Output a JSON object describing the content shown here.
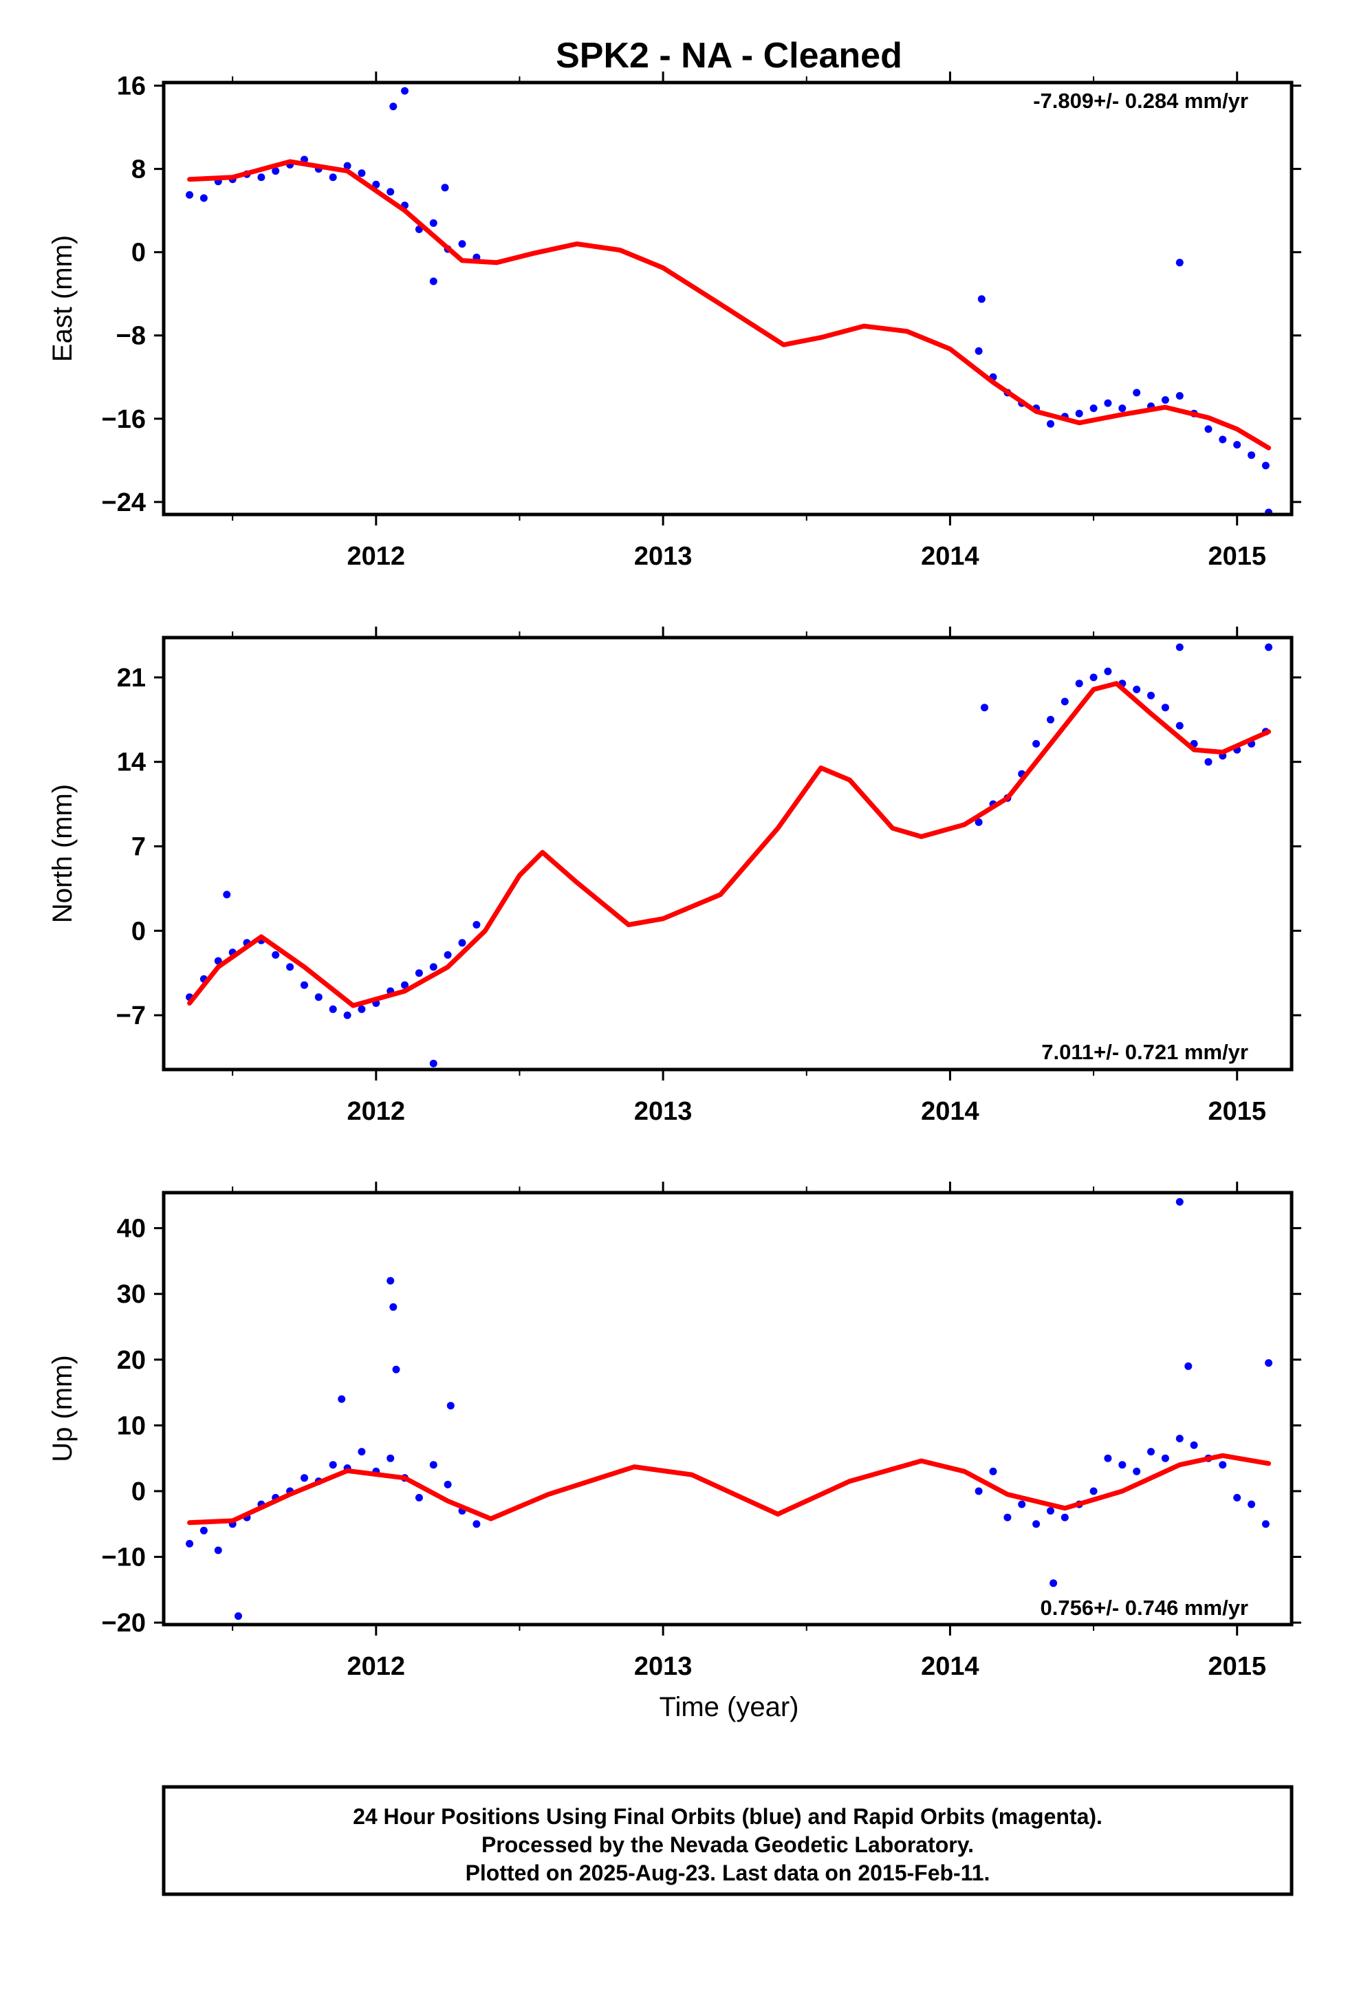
{
  "title": "SPK2  - NA - Cleaned",
  "xlabel": "Time (year)",
  "footer": {
    "line1": "24 Hour Positions Using Final Orbits (blue) and Rapid Orbits (magenta).",
    "line2": "Processed by the Nevada Geodetic Laboratory.",
    "line3": "Plotted on 2025-Aug-23. Last data on 2015-Feb-11."
  },
  "colors": {
    "points": "#0000ff",
    "fit": "#ff0000",
    "frame": "#000000"
  },
  "chart_data": [
    {
      "type": "scatter",
      "ylabel": "East (mm)",
      "rate": "-7.809+/- 0.284 mm/yr",
      "xlim": [
        2011.26,
        2015.19
      ],
      "ylim": [
        -25.2,
        16.3
      ],
      "yticks": [
        16,
        8,
        0,
        -8,
        -16,
        -24
      ],
      "ytick_labels": [
        "16",
        "8",
        "0",
        "−8",
        "−16",
        "−24"
      ],
      "xticks": [
        2012,
        2013,
        2014,
        2015
      ],
      "xtick_labels": [
        "2012",
        "2013",
        "2014",
        "2015"
      ],
      "series": [
        {
          "name": "positions",
          "x": [
            2011.35,
            2011.4,
            2011.45,
            2011.5,
            2011.55,
            2011.6,
            2011.65,
            2011.7,
            2011.75,
            2011.8,
            2011.85,
            2011.9,
            2011.95,
            2012.0,
            2012.05,
            2012.1,
            2012.15,
            2012.2,
            2012.25,
            2012.3,
            2012.35,
            2012.06,
            2012.1,
            2012.2,
            2012.24,
            2014.1,
            2014.15,
            2014.2,
            2014.25,
            2014.3,
            2014.35,
            2014.4,
            2014.45,
            2014.5,
            2014.55,
            2014.6,
            2014.65,
            2014.7,
            2014.75,
            2014.8,
            2014.85,
            2014.9,
            2014.95,
            2015.0,
            2015.05,
            2015.1,
            2014.11,
            2014.8,
            2015.11
          ],
          "y": [
            5.5,
            5.2,
            6.8,
            7.0,
            7.5,
            7.2,
            7.8,
            8.4,
            8.9,
            8.0,
            7.2,
            8.3,
            7.6,
            6.5,
            5.8,
            4.5,
            2.2,
            2.8,
            0.3,
            0.8,
            -0.5,
            14.0,
            15.5,
            -2.8,
            6.2,
            -9.5,
            -12.0,
            -13.5,
            -14.5,
            -15.0,
            -16.5,
            -15.8,
            -15.5,
            -15.0,
            -14.5,
            -15.0,
            -13.5,
            -14.8,
            -14.2,
            -13.8,
            -15.5,
            -17.0,
            -18.0,
            -18.5,
            -19.5,
            -20.5,
            -4.5,
            -1.0,
            -25.0
          ]
        },
        {
          "name": "fit",
          "x": [
            2011.35,
            2011.5,
            2011.7,
            2011.9,
            2012.1,
            2012.3,
            2012.42,
            2012.55,
            2012.7,
            2012.85,
            2013.0,
            2013.2,
            2013.42,
            2013.55,
            2013.7,
            2013.85,
            2014.0,
            2014.15,
            2014.3,
            2014.45,
            2014.6,
            2014.75,
            2014.9,
            2015.0,
            2015.11
          ],
          "y": [
            7.0,
            7.2,
            8.7,
            7.8,
            4.0,
            -0.8,
            -1.0,
            -0.1,
            0.8,
            0.2,
            -1.5,
            -5.0,
            -8.9,
            -8.2,
            -7.1,
            -7.6,
            -9.3,
            -12.5,
            -15.3,
            -16.4,
            -15.6,
            -14.9,
            -15.9,
            -17.0,
            -18.8
          ]
        }
      ]
    },
    {
      "type": "scatter",
      "ylabel": "North (mm)",
      "rate": "7.011+/- 0.721 mm/yr",
      "xlim": [
        2011.26,
        2015.19
      ],
      "ylim": [
        -11.5,
        24.3
      ],
      "yticks": [
        21,
        14,
        7,
        0,
        -7
      ],
      "ytick_labels": [
        "21",
        "14",
        "7",
        "0",
        "−7"
      ],
      "xticks": [
        2012,
        2013,
        2014,
        2015
      ],
      "xtick_labels": [
        "2012",
        "2013",
        "2014",
        "2015"
      ],
      "series": [
        {
          "name": "positions",
          "x": [
            2011.35,
            2011.4,
            2011.45,
            2011.5,
            2011.55,
            2011.6,
            2011.65,
            2011.7,
            2011.75,
            2011.8,
            2011.85,
            2011.9,
            2011.95,
            2012.0,
            2012.05,
            2012.1,
            2012.15,
            2012.2,
            2012.25,
            2012.3,
            2012.35,
            2011.48,
            2012.2,
            2014.1,
            2014.15,
            2014.2,
            2014.25,
            2014.3,
            2014.35,
            2014.4,
            2014.45,
            2014.5,
            2014.55,
            2014.6,
            2014.65,
            2014.7,
            2014.75,
            2014.8,
            2014.85,
            2014.9,
            2014.95,
            2015.0,
            2015.05,
            2015.1,
            2014.12,
            2014.8,
            2015.11
          ],
          "y": [
            -5.5,
            -4.0,
            -2.5,
            -1.8,
            -1.0,
            -0.8,
            -2.0,
            -3.0,
            -4.5,
            -5.5,
            -6.5,
            -7.0,
            -6.5,
            -6.0,
            -5.0,
            -4.5,
            -3.5,
            -3.0,
            -2.0,
            -1.0,
            0.5,
            3.0,
            -11.0,
            9.0,
            10.5,
            11.0,
            13.0,
            15.5,
            17.5,
            19.0,
            20.5,
            21.0,
            21.5,
            20.5,
            20.0,
            19.5,
            18.5,
            17.0,
            15.5,
            14.0,
            14.5,
            15.0,
            15.5,
            16.5,
            18.5,
            23.5,
            23.5
          ]
        },
        {
          "name": "fit",
          "x": [
            2011.35,
            2011.45,
            2011.6,
            2011.75,
            2011.92,
            2012.1,
            2012.25,
            2012.38,
            2012.5,
            2012.58,
            2012.7,
            2012.88,
            2013.0,
            2013.2,
            2013.4,
            2013.55,
            2013.65,
            2013.8,
            2013.9,
            2014.05,
            2014.2,
            2014.35,
            2014.5,
            2014.58,
            2014.7,
            2014.85,
            2014.95,
            2015.11
          ],
          "y": [
            -6.0,
            -3.0,
            -0.5,
            -3.0,
            -6.2,
            -5.0,
            -3.0,
            0.0,
            4.6,
            6.5,
            4.0,
            0.5,
            1.0,
            3.0,
            8.5,
            13.5,
            12.5,
            8.5,
            7.8,
            8.8,
            11.0,
            15.5,
            20.0,
            20.5,
            18.0,
            15.0,
            14.8,
            16.5
          ]
        }
      ]
    },
    {
      "type": "scatter",
      "ylabel": "Up (mm)",
      "rate": "0.756+/- 0.746 mm/yr",
      "xlim": [
        2011.26,
        2015.19
      ],
      "ylim": [
        -20.3,
        45.4
      ],
      "yticks": [
        40,
        30,
        20,
        10,
        0,
        -10,
        -20
      ],
      "ytick_labels": [
        "40",
        "30",
        "20",
        "10",
        "0",
        "−10",
        "−20"
      ],
      "xticks": [
        2012,
        2013,
        2014,
        2015
      ],
      "xtick_labels": [
        "2012",
        "2013",
        "2014",
        "2015"
      ],
      "series": [
        {
          "name": "positions",
          "x": [
            2011.35,
            2011.4,
            2011.45,
            2011.5,
            2011.55,
            2011.6,
            2011.65,
            2011.7,
            2011.75,
            2011.8,
            2011.85,
            2011.9,
            2011.95,
            2012.0,
            2012.05,
            2012.1,
            2012.15,
            2012.2,
            2012.25,
            2012.3,
            2012.35,
            2012.05,
            2012.06,
            2012.07,
            2011.52,
            2011.88,
            2012.26,
            2014.1,
            2014.15,
            2014.2,
            2014.25,
            2014.3,
            2014.35,
            2014.4,
            2014.45,
            2014.5,
            2014.55,
            2014.6,
            2014.65,
            2014.7,
            2014.75,
            2014.8,
            2014.85,
            2014.9,
            2014.95,
            2015.0,
            2015.05,
            2015.1,
            2014.36,
            2014.8,
            2015.11,
            2014.83
          ],
          "y": [
            -8.0,
            -6.0,
            -9.0,
            -5.0,
            -4.0,
            -2.0,
            -1.0,
            0.0,
            2.0,
            1.5,
            4.0,
            3.5,
            6.0,
            3.0,
            5.0,
            2.0,
            -1.0,
            4.0,
            1.0,
            -3.0,
            -5.0,
            32.0,
            28.0,
            18.5,
            -19.0,
            14.0,
            13.0,
            0.0,
            3.0,
            -4.0,
            -2.0,
            -5.0,
            -3.0,
            -4.0,
            -2.0,
            0.0,
            5.0,
            4.0,
            3.0,
            6.0,
            5.0,
            8.0,
            7.0,
            5.0,
            4.0,
            -1.0,
            -2.0,
            -5.0,
            -14.0,
            44.0,
            19.5,
            19.0
          ]
        },
        {
          "name": "fit",
          "x": [
            2011.35,
            2011.5,
            2011.7,
            2011.9,
            2012.1,
            2012.25,
            2012.4,
            2012.6,
            2012.9,
            2013.1,
            2013.4,
            2013.65,
            2013.9,
            2014.05,
            2014.2,
            2014.4,
            2014.6,
            2014.8,
            2014.95,
            2015.11
          ],
          "y": [
            -4.8,
            -4.5,
            -0.5,
            3.1,
            2.0,
            -1.5,
            -4.2,
            -0.5,
            3.7,
            2.5,
            -3.5,
            1.5,
            4.6,
            3.0,
            -0.5,
            -2.6,
            0.0,
            4.0,
            5.4,
            4.2
          ]
        }
      ]
    }
  ]
}
